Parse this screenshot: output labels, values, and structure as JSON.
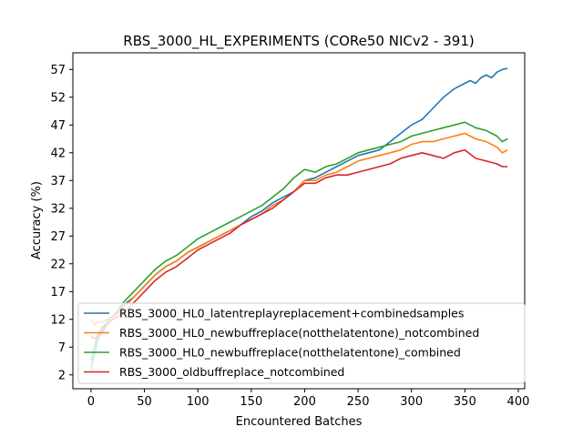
{
  "chart_data": {
    "type": "line",
    "title": "RBS_3000_HL_EXPERIMENTS (CORe50 NICv2 - 391)",
    "xlabel": "Encountered Batches",
    "ylabel": "Accuracy (%)",
    "xlim": [
      -17,
      406
    ],
    "ylim": [
      -0.5,
      60
    ],
    "xticks": [
      0,
      50,
      100,
      150,
      200,
      250,
      300,
      350,
      400
    ],
    "yticks": [
      2,
      7,
      12,
      17,
      22,
      27,
      32,
      37,
      42,
      47,
      52,
      57
    ],
    "grid": false,
    "legend_position": "lower-left",
    "series": [
      {
        "name": "RBS_3000_HL0_latentreplayreplacement+combinedsamples",
        "color": "#1f77b4",
        "points": [
          [
            0,
            3.0
          ],
          [
            3,
            5.5
          ],
          [
            6,
            8.0
          ],
          [
            10,
            10.0
          ],
          [
            15,
            11.5
          ],
          [
            20,
            12.5
          ],
          [
            25,
            13.2
          ],
          [
            30,
            14.5
          ],
          [
            40,
            16.0
          ],
          [
            50,
            18.0
          ],
          [
            60,
            20.0
          ],
          [
            70,
            21.5
          ],
          [
            80,
            22.5
          ],
          [
            90,
            24.0
          ],
          [
            100,
            25.0
          ],
          [
            110,
            26.0
          ],
          [
            120,
            27.0
          ],
          [
            130,
            28.0
          ],
          [
            140,
            29.0
          ],
          [
            150,
            30.5
          ],
          [
            160,
            31.5
          ],
          [
            170,
            33.0
          ],
          [
            180,
            34.0
          ],
          [
            190,
            35.0
          ],
          [
            200,
            37.0
          ],
          [
            210,
            37.5
          ],
          [
            220,
            38.5
          ],
          [
            230,
            39.5
          ],
          [
            240,
            40.5
          ],
          [
            250,
            41.5
          ],
          [
            260,
            42.0
          ],
          [
            270,
            42.5
          ],
          [
            280,
            44.0
          ],
          [
            290,
            45.5
          ],
          [
            300,
            47.0
          ],
          [
            310,
            48.0
          ],
          [
            320,
            50.0
          ],
          [
            330,
            52.0
          ],
          [
            340,
            53.5
          ],
          [
            350,
            54.5
          ],
          [
            355,
            55.0
          ],
          [
            360,
            54.5
          ],
          [
            365,
            55.5
          ],
          [
            370,
            56.0
          ],
          [
            375,
            55.5
          ],
          [
            380,
            56.5
          ],
          [
            385,
            57.0
          ],
          [
            390,
            57.2
          ]
        ]
      },
      {
        "name": "RBS_3000_HL0_newbuffreplace(notthelatentone)_notcombined",
        "color": "#ff7f0e",
        "points": [
          [
            0,
            12.0
          ],
          [
            3,
            11.0
          ],
          [
            6,
            11.5
          ],
          [
            10,
            11.5
          ],
          [
            15,
            12.0
          ],
          [
            20,
            12.5
          ],
          [
            25,
            13.0
          ],
          [
            30,
            14.0
          ],
          [
            40,
            16.0
          ],
          [
            50,
            18.0
          ],
          [
            60,
            20.0
          ],
          [
            70,
            21.5
          ],
          [
            80,
            22.5
          ],
          [
            90,
            24.0
          ],
          [
            100,
            25.0
          ],
          [
            110,
            26.0
          ],
          [
            120,
            27.0
          ],
          [
            130,
            28.0
          ],
          [
            140,
            29.0
          ],
          [
            150,
            30.0
          ],
          [
            160,
            31.0
          ],
          [
            170,
            32.5
          ],
          [
            180,
            33.5
          ],
          [
            190,
            35.0
          ],
          [
            200,
            37.0
          ],
          [
            210,
            37.0
          ],
          [
            220,
            38.0
          ],
          [
            230,
            38.5
          ],
          [
            240,
            39.5
          ],
          [
            250,
            40.5
          ],
          [
            260,
            41.0
          ],
          [
            270,
            41.5
          ],
          [
            280,
            42.0
          ],
          [
            290,
            42.5
          ],
          [
            300,
            43.5
          ],
          [
            310,
            44.0
          ],
          [
            320,
            44.0
          ],
          [
            330,
            44.5
          ],
          [
            340,
            45.0
          ],
          [
            350,
            45.5
          ],
          [
            360,
            44.5
          ],
          [
            370,
            44.0
          ],
          [
            380,
            43.0
          ],
          [
            385,
            42.0
          ],
          [
            390,
            42.5
          ]
        ]
      },
      {
        "name": "RBS_3000_HL0_newbuffreplace(notthelatentone)_combined",
        "color": "#2ca02c",
        "points": [
          [
            0,
            4.5
          ],
          [
            3,
            7.0
          ],
          [
            6,
            9.0
          ],
          [
            10,
            10.5
          ],
          [
            15,
            11.5
          ],
          [
            20,
            12.5
          ],
          [
            25,
            13.5
          ],
          [
            30,
            15.0
          ],
          [
            40,
            17.0
          ],
          [
            50,
            19.0
          ],
          [
            60,
            21.0
          ],
          [
            70,
            22.5
          ],
          [
            80,
            23.5
          ],
          [
            90,
            25.0
          ],
          [
            100,
            26.5
          ],
          [
            110,
            27.5
          ],
          [
            120,
            28.5
          ],
          [
            130,
            29.5
          ],
          [
            140,
            30.5
          ],
          [
            150,
            31.5
          ],
          [
            160,
            32.5
          ],
          [
            170,
            34.0
          ],
          [
            180,
            35.5
          ],
          [
            190,
            37.5
          ],
          [
            200,
            39.0
          ],
          [
            210,
            38.5
          ],
          [
            220,
            39.5
          ],
          [
            230,
            40.0
          ],
          [
            240,
            41.0
          ],
          [
            250,
            42.0
          ],
          [
            260,
            42.5
          ],
          [
            270,
            43.0
          ],
          [
            280,
            43.5
          ],
          [
            290,
            44.0
          ],
          [
            300,
            45.0
          ],
          [
            310,
            45.5
          ],
          [
            320,
            46.0
          ],
          [
            330,
            46.5
          ],
          [
            340,
            47.0
          ],
          [
            350,
            47.5
          ],
          [
            360,
            46.5
          ],
          [
            370,
            46.0
          ],
          [
            380,
            45.0
          ],
          [
            385,
            44.0
          ],
          [
            390,
            44.5
          ]
        ]
      },
      {
        "name": "RBS_3000_oldbuffreplace_notcombined",
        "color": "#d62728",
        "points": [
          [
            0,
            9.0
          ],
          [
            3,
            8.5
          ],
          [
            6,
            9.0
          ],
          [
            10,
            9.5
          ],
          [
            15,
            11.0
          ],
          [
            20,
            12.0
          ],
          [
            25,
            12.5
          ],
          [
            30,
            13.0
          ],
          [
            40,
            15.0
          ],
          [
            50,
            17.0
          ],
          [
            60,
            19.0
          ],
          [
            70,
            20.5
          ],
          [
            80,
            21.5
          ],
          [
            90,
            23.0
          ],
          [
            100,
            24.5
          ],
          [
            110,
            25.5
          ],
          [
            120,
            26.5
          ],
          [
            130,
            27.5
          ],
          [
            140,
            29.0
          ],
          [
            150,
            30.0
          ],
          [
            160,
            31.0
          ],
          [
            170,
            32.0
          ],
          [
            180,
            33.5
          ],
          [
            190,
            35.0
          ],
          [
            200,
            36.5
          ],
          [
            210,
            36.5
          ],
          [
            220,
            37.5
          ],
          [
            230,
            38.0
          ],
          [
            240,
            38.0
          ],
          [
            250,
            38.5
          ],
          [
            260,
            39.0
          ],
          [
            270,
            39.5
          ],
          [
            280,
            40.0
          ],
          [
            290,
            41.0
          ],
          [
            300,
            41.5
          ],
          [
            310,
            42.0
          ],
          [
            320,
            41.5
          ],
          [
            330,
            41.0
          ],
          [
            340,
            42.0
          ],
          [
            350,
            42.5
          ],
          [
            360,
            41.0
          ],
          [
            370,
            40.5
          ],
          [
            380,
            40.0
          ],
          [
            385,
            39.5
          ],
          [
            390,
            39.5
          ]
        ]
      }
    ]
  }
}
